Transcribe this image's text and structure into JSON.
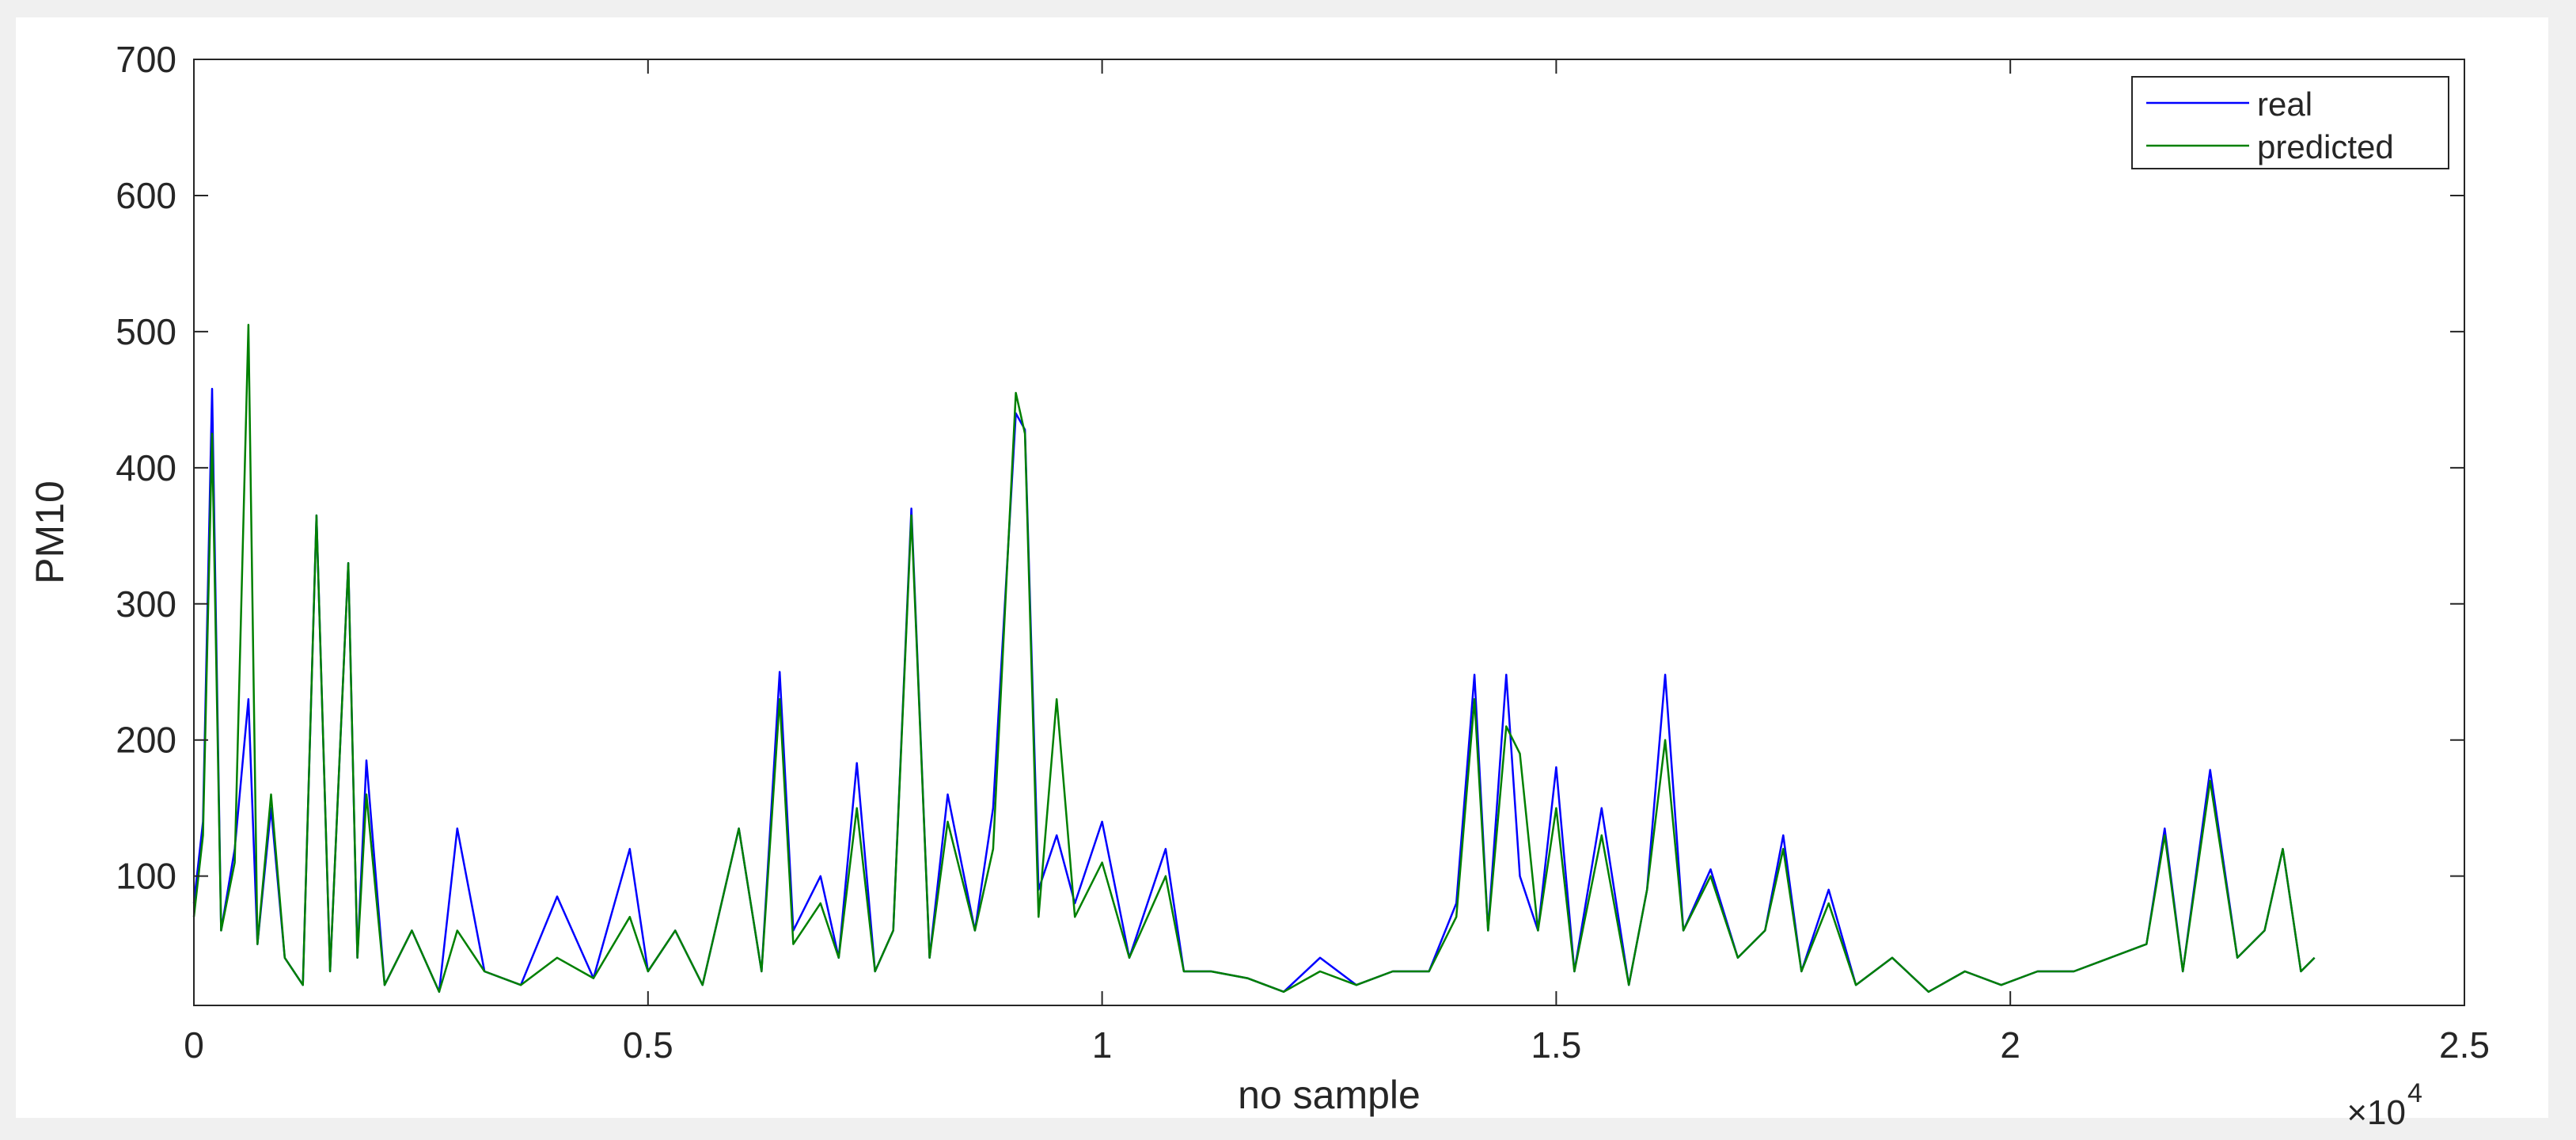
{
  "chart_data": {
    "type": "line",
    "xlabel": "no sample",
    "ylabel": "PM10",
    "x_exponent_label": "×10",
    "x_exponent": 4,
    "x": [
      0,
      0.01,
      0.02,
      0.03,
      0.045,
      0.06,
      0.07,
      0.085,
      0.1,
      0.12,
      0.135,
      0.15,
      0.17,
      0.18,
      0.19,
      0.21,
      0.24,
      0.27,
      0.29,
      0.32,
      0.36,
      0.4,
      0.44,
      0.48,
      0.5,
      0.53,
      0.56,
      0.6,
      0.625,
      0.645,
      0.66,
      0.69,
      0.71,
      0.73,
      0.75,
      0.77,
      0.79,
      0.81,
      0.83,
      0.86,
      0.88,
      0.905,
      0.915,
      0.93,
      0.95,
      0.97,
      1.0,
      1.03,
      1.07,
      1.09,
      1.12,
      1.16,
      1.2,
      1.24,
      1.28,
      1.32,
      1.36,
      1.39,
      1.41,
      1.425,
      1.445,
      1.46,
      1.48,
      1.5,
      1.52,
      1.55,
      1.58,
      1.6,
      1.62,
      1.64,
      1.67,
      1.7,
      1.73,
      1.75,
      1.77,
      1.8,
      1.83,
      1.87,
      1.91,
      1.95,
      1.99,
      2.03,
      2.07,
      2.11,
      2.15,
      2.17,
      2.19,
      2.22,
      2.25,
      2.28,
      2.3,
      2.32,
      2.335
    ],
    "series": [
      {
        "name": "real",
        "color": "#0000ff",
        "values": [
          80,
          140,
          458,
          60,
          120,
          230,
          50,
          150,
          40,
          20,
          365,
          30,
          330,
          40,
          185,
          20,
          60,
          15,
          135,
          30,
          20,
          85,
          25,
          120,
          30,
          60,
          20,
          135,
          30,
          250,
          60,
          100,
          40,
          183,
          30,
          60,
          370,
          40,
          160,
          60,
          150,
          440,
          428,
          90,
          130,
          80,
          140,
          40,
          120,
          30,
          30,
          25,
          15,
          40,
          20,
          30,
          30,
          80,
          248,
          60,
          248,
          100,
          60,
          180,
          30,
          150,
          20,
          90,
          248,
          60,
          105,
          40,
          60,
          130,
          30,
          90,
          20,
          40,
          15,
          30,
          20,
          30,
          30,
          40,
          50,
          135,
          30,
          178,
          40,
          60,
          120,
          30,
          40
        ]
      },
      {
        "name": "predicted",
        "color": "#008000",
        "values": [
          70,
          130,
          425,
          60,
          110,
          505,
          50,
          160,
          40,
          20,
          365,
          30,
          330,
          40,
          160,
          20,
          60,
          15,
          60,
          30,
          20,
          40,
          25,
          70,
          30,
          60,
          20,
          135,
          30,
          230,
          50,
          80,
          40,
          150,
          30,
          60,
          365,
          40,
          140,
          60,
          120,
          455,
          425,
          70,
          230,
          70,
          110,
          40,
          100,
          30,
          30,
          25,
          15,
          30,
          20,
          30,
          30,
          70,
          230,
          60,
          210,
          190,
          60,
          150,
          30,
          130,
          20,
          90,
          200,
          60,
          100,
          40,
          60,
          120,
          30,
          80,
          20,
          40,
          15,
          30,
          20,
          30,
          30,
          40,
          50,
          130,
          30,
          170,
          40,
          60,
          120,
          30,
          40
        ]
      }
    ],
    "xlim": [
      0,
      2.5
    ],
    "xticks": [
      0,
      0.5,
      1,
      1.5,
      2,
      2.5
    ],
    "ylim": [
      5,
      700
    ],
    "yticks": [
      100,
      200,
      300,
      400,
      500,
      600,
      700
    ],
    "legend": "upper right"
  }
}
